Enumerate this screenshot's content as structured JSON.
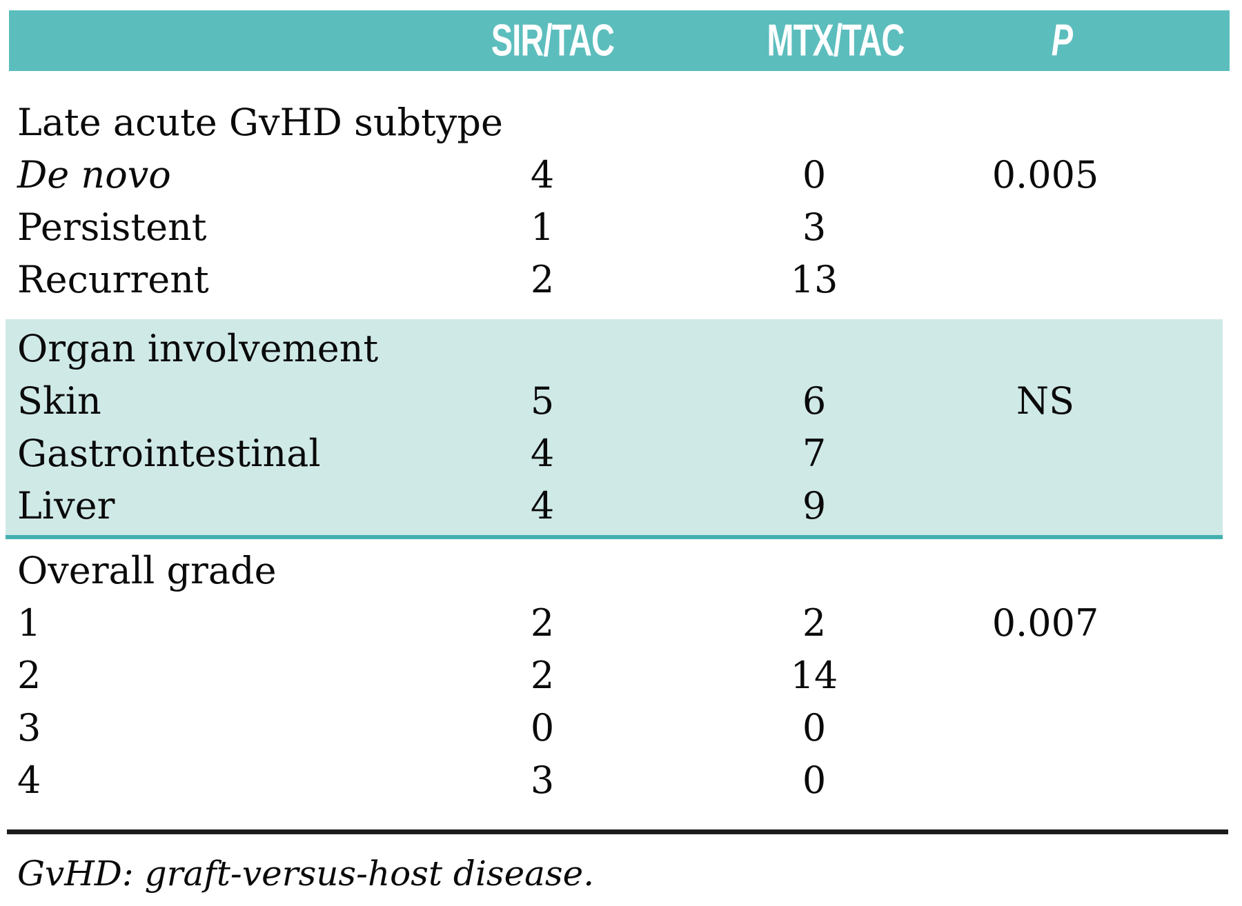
{
  "table": {
    "columns": [
      {
        "label": "SIR/TAC"
      },
      {
        "label": "MTX/TAC"
      },
      {
        "label": "P"
      }
    ],
    "sections": [
      {
        "title": "Late acute GvHD subtype",
        "rows": [
          {
            "label": "De novo",
            "sir": "4",
            "mtx": "0",
            "p": "0.005"
          },
          {
            "label": "Persistent",
            "sir": "1",
            "mtx": "3",
            "p": ""
          },
          {
            "label": "Recurrent",
            "sir": "2",
            "mtx": "13",
            "p": ""
          }
        ]
      },
      {
        "title": "Organ involvement",
        "rows": [
          {
            "label": "Skin",
            "sir": "5",
            "mtx": "6",
            "p": "NS"
          },
          {
            "label": "Gastrointestinal",
            "sir": "4",
            "mtx": "7",
            "p": ""
          },
          {
            "label": "Liver",
            "sir": "4",
            "mtx": "9",
            "p": ""
          }
        ]
      },
      {
        "title": "Overall grade",
        "rows": [
          {
            "label": "1",
            "sir": "2",
            "mtx": "2",
            "p": "0.007"
          },
          {
            "label": "2",
            "sir": "2",
            "mtx": "14",
            "p": ""
          },
          {
            "label": "3",
            "sir": "0",
            "mtx": "0",
            "p": ""
          },
          {
            "label": "4",
            "sir": "3",
            "mtx": "0",
            "p": ""
          }
        ]
      }
    ],
    "footnote": "GvHD: graft-versus-host disease."
  },
  "colors": {
    "header_band": "#5cbdbd",
    "highlight_band": "#cfe9e7",
    "highlight_band_border": "#44b0b0",
    "rule": "#1c1c1c"
  }
}
